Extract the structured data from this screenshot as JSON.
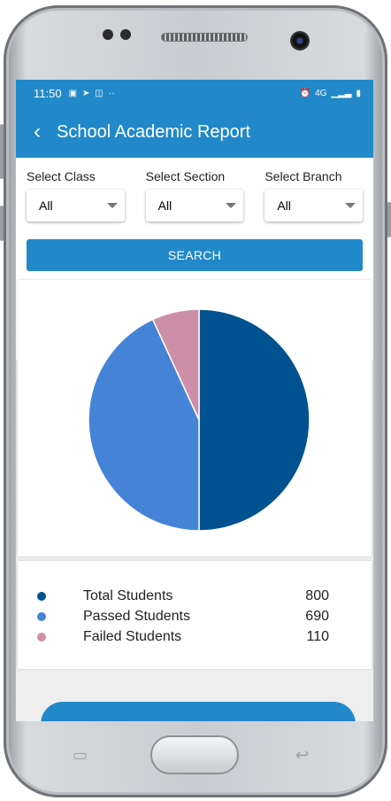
{
  "status_bar": {
    "time": "11:50",
    "network": "4G"
  },
  "app_bar": {
    "title": "School Academic Report"
  },
  "filters": [
    {
      "label": "Select Class",
      "value": "All"
    },
    {
      "label": "Select Section",
      "value": "All"
    },
    {
      "label": "Select Branch",
      "value": "All"
    }
  ],
  "search_label": "SEARCH",
  "chart_data": {
    "type": "pie",
    "labels": [
      "Total Students",
      "Passed Students",
      "Failed Students"
    ],
    "values": [
      800,
      690,
      110
    ],
    "colors": [
      "#00518f",
      "#4583d6",
      "#cd8fa7"
    ]
  },
  "legend": [
    {
      "label": "Total Students",
      "value": "800",
      "color": "#00518f"
    },
    {
      "label": "Passed Students",
      "value": "690",
      "color": "#4583d6"
    },
    {
      "label": "Failed Students",
      "value": "110",
      "color": "#cd8fa7"
    }
  ]
}
